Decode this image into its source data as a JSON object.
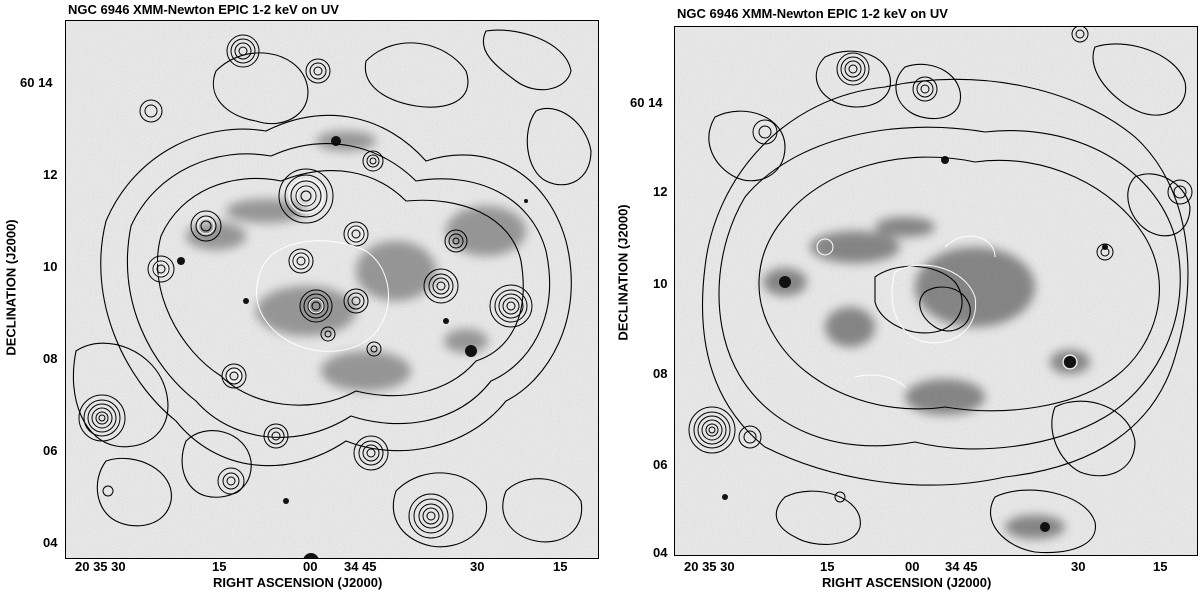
{
  "panels": [
    {
      "title": "NGC 6946 XMM-Newton EPIC 1-2 keV on UV",
      "xlabel": "RIGHT ASCENSION (J2000)",
      "ylabel": "DECLINATION (J2000)",
      "xticks": [
        "20 35 30",
        "15",
        "00",
        "34 45",
        "30",
        "15"
      ],
      "yticks": [
        "60 14",
        "12",
        "10",
        "08",
        "06",
        "04"
      ],
      "image_style": "grayscale UV image with black/white X-ray contours"
    },
    {
      "title": "NGC 6946 XMM-Newton EPIC 1-2 keV on UV",
      "xlabel": "RIGHT ASCENSION (J2000)",
      "ylabel": "DECLINATION (J2000)",
      "xticks": [
        "20 35 30",
        "15",
        "00",
        "34 45",
        "30",
        "15"
      ],
      "yticks": [
        "60 14",
        "12",
        "10",
        "08",
        "06",
        "04"
      ],
      "image_style": "grayscale UV image with black/white diffuse X-ray contours"
    }
  ]
}
